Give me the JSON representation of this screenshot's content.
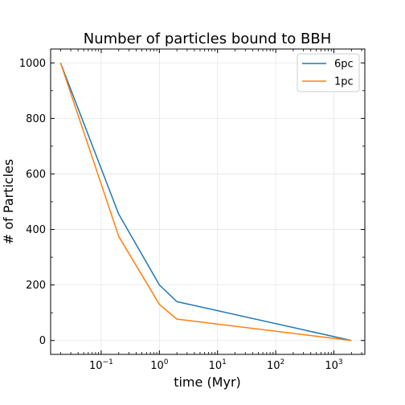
{
  "chart_data": {
    "type": "line",
    "title": "Number of particles bound to BBH",
    "xlabel": "time (Myr)",
    "ylabel": "# of Particles",
    "xscale": "log",
    "xlim": [
      0.0135,
      3400
    ],
    "ylim": [
      -50,
      1050
    ],
    "xticks": [
      {
        "base": "10",
        "exp": "−1",
        "value": 0.1
      },
      {
        "base": "10",
        "exp": "0",
        "value": 1
      },
      {
        "base": "10",
        "exp": "1",
        "value": 10
      },
      {
        "base": "10",
        "exp": "2",
        "value": 100
      },
      {
        "base": "10",
        "exp": "3",
        "value": 1000
      }
    ],
    "yticks": [
      "0",
      "200",
      "400",
      "600",
      "800",
      "1000"
    ],
    "grid": true,
    "legend_position": "top-right",
    "series": [
      {
        "name": "6pc",
        "color": "#1f77b4",
        "x": [
          0.02,
          0.2,
          1,
          2,
          2000
        ],
        "y": [
          1000,
          455,
          200,
          140,
          0
        ]
      },
      {
        "name": "1pc",
        "color": "#ff7f0e",
        "x": [
          0.02,
          0.2,
          1,
          2,
          2000
        ],
        "y": [
          1000,
          375,
          130,
          77,
          0
        ]
      }
    ]
  }
}
